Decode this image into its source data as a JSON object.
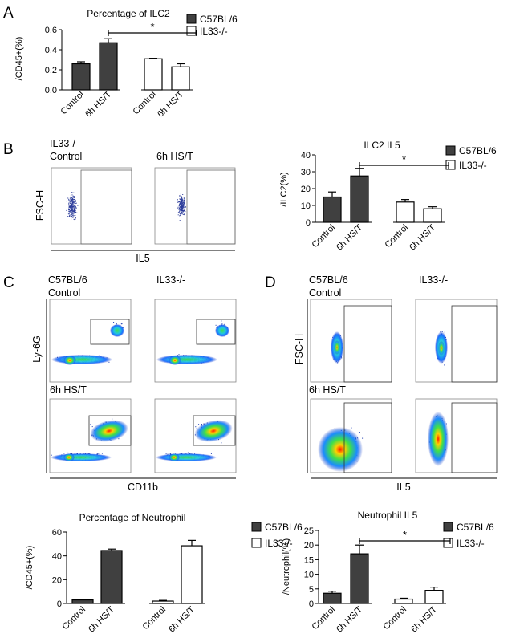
{
  "panels": {
    "A": "A",
    "B": "B",
    "C": "C",
    "D": "D"
  },
  "flow": {
    "B": {
      "strain": "IL33-/-",
      "cond1": "Control",
      "cond2": "6h HS/T",
      "ylabel": "FSC-H",
      "xlabel": "IL5"
    },
    "C": {
      "strain1": "C57BL/6",
      "strain2": "IL33-/-",
      "cond1": "Control",
      "cond2": "6h HS/T",
      "ylabel": "Ly-6G",
      "xlabel": "CD11b"
    },
    "D": {
      "strain1": "C57BL/6",
      "strain2": "IL33-/-",
      "cond1": "Control",
      "cond2": "6h HS/T",
      "ylabel": "FSC-H",
      "xlabel": "IL5"
    }
  },
  "chart_data": [
    {
      "id": "A",
      "type": "bar",
      "title": "Percentage of ILC2",
      "ylabel": "/CD45+(%)",
      "categories": [
        "Control",
        "6h HS/T",
        "Control",
        "6h HS/T"
      ],
      "groups": [
        "C57BL/6",
        "C57BL/6",
        "IL33-/-",
        "IL33-/-"
      ],
      "values": [
        0.26,
        0.47,
        0.31,
        0.23
      ],
      "errors": [
        0.02,
        0.04,
        0.005,
        0.03
      ],
      "ylim": [
        0,
        0.6
      ],
      "yticks": [
        0.0,
        0.2,
        0.4,
        0.6
      ],
      "ytick_labels": [
        "0.0",
        "0.2",
        "0.4",
        "0.6"
      ],
      "series": [
        {
          "name": "C57BL/6",
          "color": "#404040"
        },
        {
          "name": "IL33-/-",
          "color": "#ffffff"
        }
      ],
      "significance": "*"
    },
    {
      "id": "B",
      "type": "bar",
      "title": "ILC2 IL5",
      "ylabel": "/ILC2(%)",
      "categories": [
        "Control",
        "6h HS/T",
        "Control",
        "6h HS/T"
      ],
      "groups": [
        "C57BL/6",
        "C57BL/6",
        "IL33-/-",
        "IL33-/-"
      ],
      "values": [
        15,
        27.5,
        12,
        8
      ],
      "errors": [
        3,
        4.5,
        1.5,
        1.2
      ],
      "ylim": [
        0,
        40
      ],
      "yticks": [
        0,
        10,
        20,
        30,
        40
      ],
      "ytick_labels": [
        "0",
        "10",
        "20",
        "30",
        "40"
      ],
      "series": [
        {
          "name": "C57BL/6",
          "color": "#404040"
        },
        {
          "name": "IL33-/-",
          "color": "#ffffff"
        }
      ],
      "significance": "*"
    },
    {
      "id": "C2",
      "type": "bar",
      "title": "Percentage of Neutrophil",
      "ylabel": "/CD45+(%)",
      "categories": [
        "Control",
        "6h HS/T",
        "Control",
        "6h HS/T"
      ],
      "groups": [
        "C57BL/6",
        "C57BL/6",
        "IL33-/-",
        "IL33-/-"
      ],
      "values": [
        3,
        44.5,
        2,
        48.5
      ],
      "errors": [
        0.6,
        1.2,
        0.6,
        4.5
      ],
      "ylim": [
        0,
        60
      ],
      "yticks": [
        0,
        20,
        40,
        60
      ],
      "ytick_labels": [
        "0",
        "20",
        "40",
        "60"
      ],
      "series": [
        {
          "name": "C57BL/6",
          "color": "#404040"
        },
        {
          "name": "IL33-/-",
          "color": "#ffffff"
        }
      ],
      "significance": ""
    },
    {
      "id": "D2",
      "type": "bar",
      "title": "Neutrophil IL5",
      "ylabel": "/Neutrophil(%)",
      "categories": [
        "Control",
        "6h HS/T",
        "Control",
        "6h HS/T"
      ],
      "groups": [
        "C57BL/6",
        "C57BL/6",
        "IL33-/-",
        "IL33-/-"
      ],
      "values": [
        3.5,
        17,
        1.5,
        4.5
      ],
      "errors": [
        0.7,
        3,
        0.3,
        1.1
      ],
      "ylim": [
        0,
        25
      ],
      "yticks": [
        0,
        5,
        10,
        15,
        20,
        25
      ],
      "ytick_labels": [
        "0",
        "5",
        "10",
        "15",
        "20",
        "25"
      ],
      "series": [
        {
          "name": "C57BL/6",
          "color": "#404040"
        },
        {
          "name": "IL33-/-",
          "color": "#ffffff"
        }
      ],
      "significance": "*"
    }
  ]
}
